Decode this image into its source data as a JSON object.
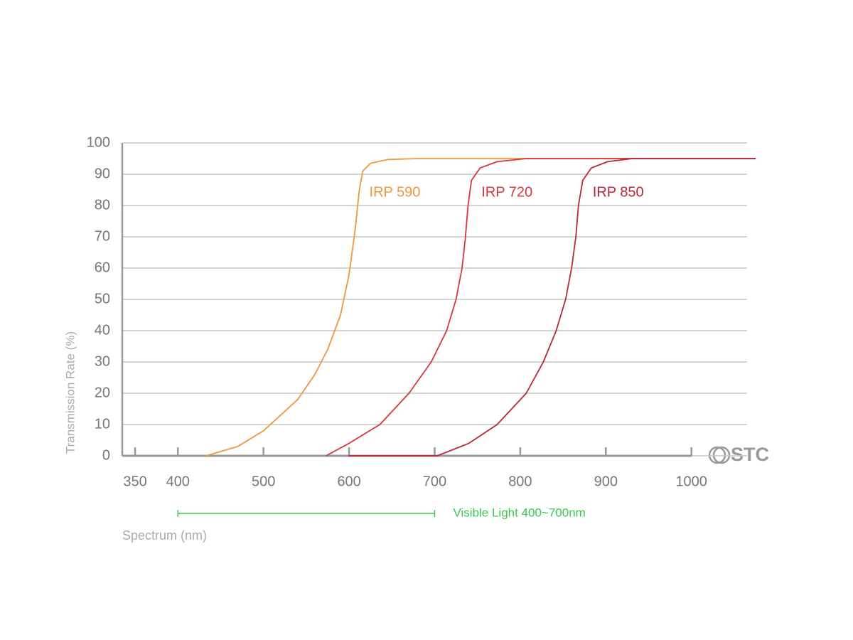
{
  "chart_data": {
    "type": "line",
    "y_label": "Transmission Rate (%)",
    "x_label": "Spectrum (nm)",
    "xlim": [
      335,
      1075
    ],
    "ylim": [
      0,
      100
    ],
    "xticks": [
      350,
      400,
      500,
      600,
      700,
      800,
      900,
      1000
    ],
    "yticks": [
      0,
      10,
      20,
      30,
      40,
      50,
      60,
      70,
      80,
      90,
      100
    ],
    "grid": true,
    "series": [
      {
        "name": "IRP 590",
        "color": "#f0963c",
        "x": [
          433,
          470,
          500,
          520,
          540,
          560,
          575,
          590,
          600,
          607,
          612,
          616,
          625,
          645,
          680,
          1075
        ],
        "values": [
          0,
          3,
          8,
          13,
          18,
          26,
          34,
          45,
          58,
          72,
          85,
          91,
          93.5,
          94.7,
          95,
          95
        ]
      },
      {
        "name": "IRP 720",
        "color": "#d9353f",
        "x": [
          573,
          600,
          636,
          670,
          696,
          714,
          725,
          732,
          736,
          739,
          743,
          753,
          773,
          807,
          1075
        ],
        "values": [
          0,
          4,
          10,
          20,
          30,
          40,
          50,
          60,
          70,
          80,
          88,
          92,
          94,
          95,
          95
        ]
      },
      {
        "name": "IRP 850",
        "color": "#b8283a",
        "x": [
          599,
          703,
          740,
          773,
          807,
          827,
          842,
          853,
          860,
          865,
          868,
          873,
          883,
          902,
          931,
          1075
        ],
        "values": [
          0,
          0,
          4,
          10,
          20,
          30,
          40,
          50,
          60,
          70,
          80,
          88,
          92,
          94,
          95,
          95
        ]
      }
    ],
    "annotation": {
      "text": "Visible Light 400~700nm",
      "span": [
        400,
        700
      ],
      "color": "#3cc84a"
    },
    "logo": "STC"
  }
}
